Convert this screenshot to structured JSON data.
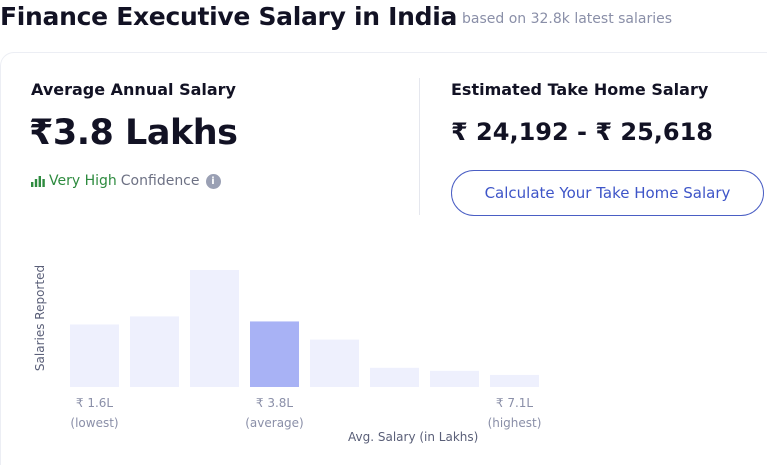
{
  "header": {
    "title": "Finance Executive Salary in India",
    "subtitle": "based on 32.8k latest salaries"
  },
  "average": {
    "heading": "Average Annual Salary",
    "value": "₹3.8 Lakhs",
    "confidence_level": "Very High",
    "confidence_word": "Confidence",
    "icons": [
      "signal-bars-icon",
      "info-icon"
    ]
  },
  "take_home": {
    "heading": "Estimated Take Home Salary",
    "value": "₹ 24,192 - ₹ 25,618",
    "button_label": "Calculate Your Take Home Salary"
  },
  "colors": {
    "bar": "#eef0fd",
    "highlight_bar": "#a8b2f5",
    "accent": "#3e55c8",
    "confidence_green": "#2e8b3f"
  },
  "chart_data": {
    "type": "bar",
    "ylabel": "Salaries Reported",
    "xlabel": "Avg. Salary (in Lakhs)",
    "bars": [
      {
        "value": 62,
        "highlight": false
      },
      {
        "value": 70,
        "highlight": false
      },
      {
        "value": 116,
        "highlight": false
      },
      {
        "value": 65,
        "highlight": true
      },
      {
        "value": 47,
        "highlight": false
      },
      {
        "value": 19,
        "highlight": false
      },
      {
        "value": 16,
        "highlight": false
      },
      {
        "value": 12,
        "highlight": false
      }
    ],
    "ticks": [
      {
        "value": "₹ 1.6L",
        "caption": "(lowest)",
        "bar_index": 0
      },
      {
        "value": "₹ 3.8L",
        "caption": "(average)",
        "bar_index": 3
      },
      {
        "value": "₹ 7.1L",
        "caption": "(highest)",
        "bar_index": 7
      }
    ],
    "ylim": [
      0,
      116
    ],
    "grid": false
  }
}
